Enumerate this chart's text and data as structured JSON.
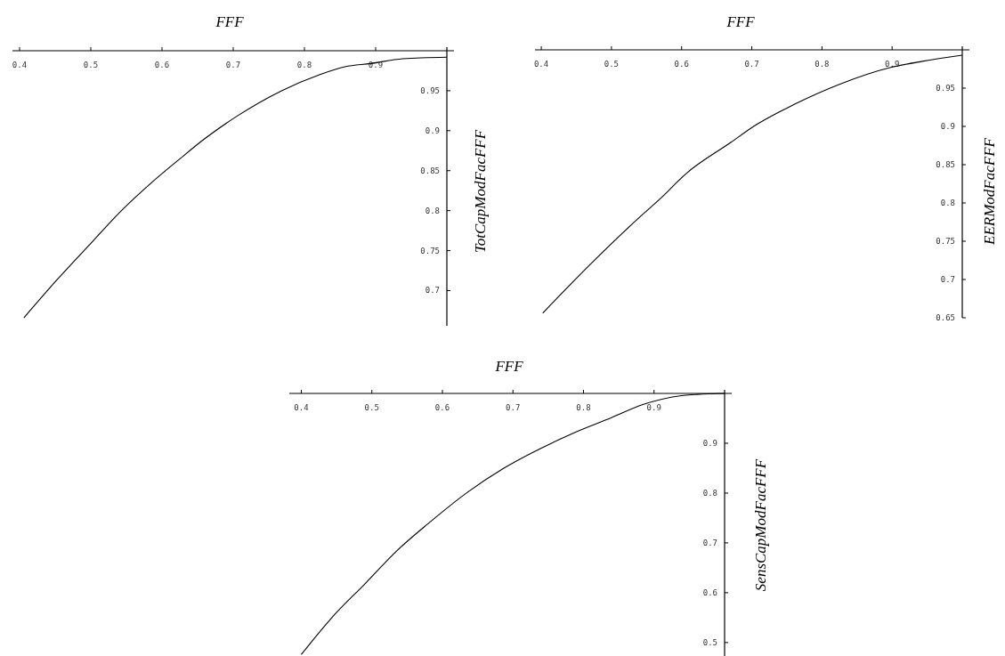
{
  "chart_data": [
    {
      "type": "line",
      "xlabel": "FFF",
      "ylabel": "TotCapModFacFFF",
      "xlim": [
        0.39,
        1.0
      ],
      "ylim": [
        0.656,
        1.0
      ],
      "xticks": [
        0.4,
        0.5,
        0.6,
        0.7,
        0.8,
        0.9
      ],
      "yticks": [
        0.7,
        0.75,
        0.8,
        0.85,
        0.9,
        0.95
      ],
      "grid": false,
      "marker": "none",
      "line_style": "solid",
      "series": [
        {
          "color": "#000000",
          "x": [
            0.406,
            0.453,
            0.503,
            0.543,
            0.584,
            0.624,
            0.66,
            0.705,
            0.768,
            0.821,
            0.857,
            0.893,
            0.938,
            1.0
          ],
          "values": [
            0.666,
            0.714,
            0.762,
            0.8,
            0.834,
            0.864,
            0.89,
            0.918,
            0.95,
            0.97,
            0.98,
            0.984,
            0.99,
            0.992
          ]
        }
      ]
    },
    {
      "type": "line",
      "xlabel": "FFF",
      "ylabel": "EERModFacFFF",
      "xlim": [
        0.391,
        1.0
      ],
      "ylim": [
        0.65,
        1.0
      ],
      "xticks": [
        0.4,
        0.5,
        0.6,
        0.7,
        0.8,
        0.9
      ],
      "yticks": [
        0.65,
        0.7,
        0.75,
        0.8,
        0.85,
        0.9,
        0.95
      ],
      "grid": false,
      "marker": "none",
      "line_style": "solid",
      "series": [
        {
          "color": "#000000",
          "x": [
            0.402,
            0.442,
            0.469,
            0.542,
            0.57,
            0.606,
            0.67,
            0.706,
            0.761,
            0.825,
            0.898,
            0.943,
            1.0
          ],
          "values": [
            0.656,
            0.694,
            0.719,
            0.783,
            0.806,
            0.838,
            0.879,
            0.902,
            0.929,
            0.955,
            0.977,
            0.985,
            0.993
          ]
        }
      ]
    },
    {
      "type": "line",
      "xlabel": "FFF",
      "ylabel": "SensCapModFacFFF",
      "xlim": [
        0.383,
        1.0
      ],
      "ylim": [
        0.473,
        1.0
      ],
      "xticks": [
        0.4,
        0.5,
        0.6,
        0.7,
        0.8,
        0.9
      ],
      "yticks": [
        0.5,
        0.6,
        0.7,
        0.8,
        0.9
      ],
      "grid": false,
      "marker": "none",
      "line_style": "solid",
      "series": [
        {
          "color": "#000000",
          "x": [
            0.4,
            0.417,
            0.442,
            0.491,
            0.536,
            0.58,
            0.635,
            0.686,
            0.737,
            0.788,
            0.839,
            0.885,
            0.949,
            0.961,
            1.0
          ],
          "values": [
            0.476,
            0.506,
            0.548,
            0.619,
            0.685,
            0.739,
            0.801,
            0.849,
            0.888,
            0.922,
            0.951,
            0.978,
            0.997,
            0.998,
            1.0
          ]
        }
      ]
    }
  ]
}
